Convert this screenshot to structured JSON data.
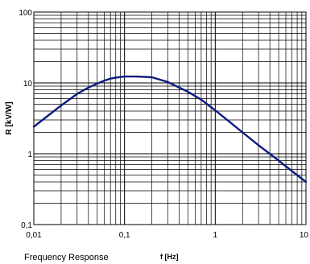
{
  "chart_data": {
    "type": "line",
    "title": "",
    "caption": "Frequency Response",
    "xlabel": "f [Hz]",
    "ylabel": "R [kV/W]",
    "xscale": "log",
    "yscale": "log",
    "xlim": [
      0.01,
      10
    ],
    "ylim": [
      0.1,
      100
    ],
    "grid": true,
    "line_color": "#0d1a80",
    "x_ticks": [
      {
        "value": 0.01,
        "label": "0,01"
      },
      {
        "value": 0.1,
        "label": "0,1"
      },
      {
        "value": 1,
        "label": "1"
      },
      {
        "value": 10,
        "label": "10"
      }
    ],
    "y_ticks": [
      {
        "value": 0.1,
        "label": "0,1"
      },
      {
        "value": 1,
        "label": "1"
      },
      {
        "value": 10,
        "label": "10"
      },
      {
        "value": 100,
        "label": "100"
      }
    ],
    "series": [
      {
        "x": [
          0.01,
          0.015,
          0.02,
          0.03,
          0.04,
          0.05,
          0.06,
          0.07,
          0.08,
          0.1,
          0.13,
          0.16,
          0.2,
          0.3,
          0.5,
          0.7,
          1,
          1.5,
          2,
          3,
          5,
          7,
          10
        ],
        "y": [
          2.4,
          3.6,
          4.8,
          7.0,
          8.6,
          9.8,
          10.8,
          11.5,
          11.9,
          12.3,
          12.3,
          12.2,
          12.0,
          10.3,
          7.5,
          5.8,
          4.1,
          2.7,
          2.0,
          1.32,
          0.8,
          0.57,
          0.4
        ]
      }
    ]
  }
}
